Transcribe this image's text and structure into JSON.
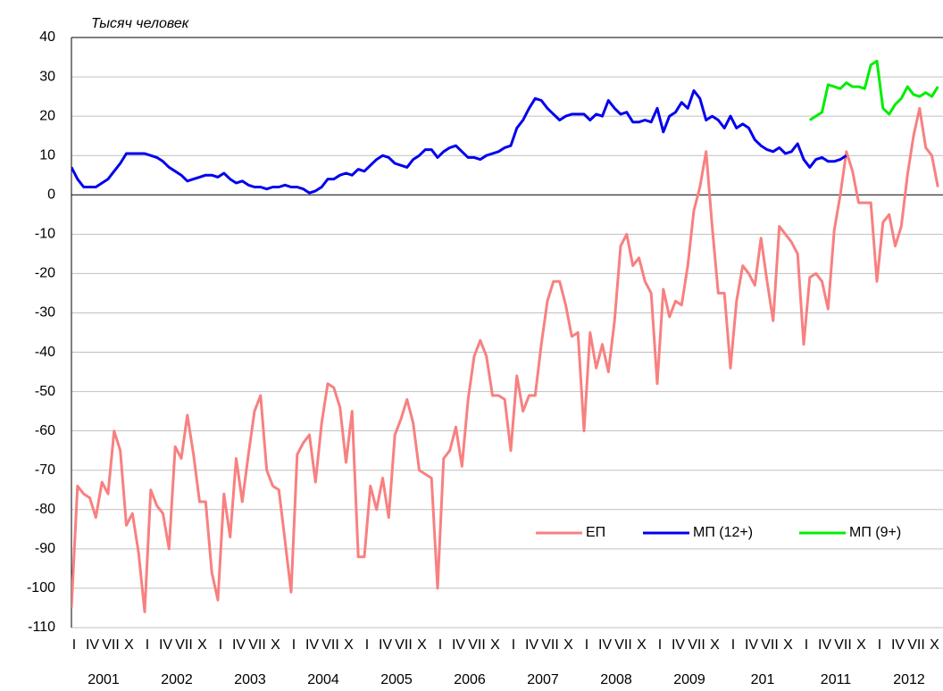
{
  "chart_data": {
    "type": "line",
    "unit_label": "Тысяч человек",
    "categories": [
      "I",
      null,
      null,
      "IV",
      null,
      null,
      "VII",
      null,
      null,
      "X",
      null,
      null,
      "I",
      null,
      null,
      "IV",
      null,
      null,
      "VII",
      null,
      null,
      "X",
      null,
      null,
      "I",
      null,
      null,
      "IV",
      null,
      null,
      "VII",
      null,
      null,
      "X",
      null,
      null,
      "I",
      null,
      null,
      "IV",
      null,
      null,
      "VII",
      null,
      null,
      "X",
      null,
      null,
      "I",
      null,
      null,
      "IV",
      null,
      null,
      "VII",
      null,
      null,
      "X",
      null,
      null,
      "I",
      null,
      null,
      "IV",
      null,
      null,
      "VII",
      null,
      null,
      "X",
      null,
      null,
      "I",
      null,
      null,
      "IV",
      null,
      null,
      "VII",
      null,
      null,
      "X",
      null,
      null,
      "I",
      null,
      null,
      "IV",
      null,
      null,
      "VII",
      null,
      null,
      "X",
      null,
      null,
      "I",
      null,
      null,
      "IV",
      null,
      null,
      "VII",
      null,
      null,
      "X",
      null,
      null,
      "I",
      null,
      null,
      "IV",
      null,
      null,
      "VII",
      null,
      null,
      "X",
      null,
      null,
      "I",
      null,
      null,
      "IV",
      null,
      null,
      "VII",
      null,
      null,
      "X",
      null,
      null,
      "I",
      null,
      null,
      "IV",
      null,
      null,
      "VII",
      null,
      null,
      "X",
      null,
      null
    ],
    "years": [
      "2001",
      "2002",
      "2003",
      "2004",
      "2005",
      "2006",
      "2007",
      "2008",
      "2009",
      "201",
      "2011",
      "2012"
    ],
    "series": [
      {
        "name": "ЕП",
        "color": "#f88080",
        "values": [
          -105,
          -74,
          -76,
          -77,
          -82,
          -73,
          -76,
          -60,
          -65,
          -84,
          -81,
          -91,
          -106,
          -75,
          -79,
          -81,
          -90,
          -64,
          -67,
          -56,
          -66,
          -78,
          -78,
          -96,
          -103,
          -76,
          -87,
          -67,
          -78,
          -66,
          -55,
          -51,
          -70,
          -74,
          -75,
          -88,
          -101,
          -66,
          -63,
          -61,
          -73,
          -58,
          -48,
          -49,
          -54,
          -68,
          -55,
          -92,
          -92,
          -74,
          -80,
          -72,
          -82,
          -61,
          -57,
          -52,
          -58,
          -70,
          -71,
          -72,
          -100,
          -67,
          -65,
          -59,
          -69,
          -52,
          -41,
          -37,
          -41,
          -51,
          -51,
          -52,
          -65,
          -46,
          -55,
          -51,
          -51,
          -38,
          -27,
          -22,
          -22,
          -28,
          -36,
          -35,
          -60,
          -35,
          -44,
          -38,
          -45,
          -32,
          -13,
          -10,
          -18,
          -16,
          -22,
          -25,
          -48,
          -24,
          -31,
          -27,
          -28,
          -18,
          -4,
          2,
          11,
          -8,
          -25,
          -25,
          -44,
          -27,
          -18,
          -20,
          -23,
          -11,
          -22,
          -32,
          -8,
          -10,
          -12,
          -15,
          -38,
          -21,
          -20,
          -22,
          -29,
          -9,
          0,
          11,
          6,
          -2,
          -2,
          -2,
          -22,
          -7,
          -5,
          -13,
          -8,
          5,
          15,
          22,
          12,
          10,
          2,
          null
        ]
      },
      {
        "name": "МП (12+)",
        "color": "#0000ee",
        "values": [
          7,
          4,
          2,
          2,
          2,
          3,
          4,
          6,
          8,
          10.5,
          10.5,
          10.5,
          10.5,
          10,
          9.5,
          8.5,
          7,
          6,
          5,
          3.5,
          4,
          4.5,
          5,
          5,
          4.5,
          5.5,
          4,
          3,
          3.5,
          2.5,
          2,
          2,
          1.5,
          2,
          2,
          2.5,
          2,
          2,
          1.5,
          0.5,
          1,
          2,
          4,
          4,
          5,
          5.5,
          5,
          6.5,
          6,
          7.5,
          9,
          10,
          9.5,
          8,
          7.5,
          7,
          9,
          10,
          11.5,
          11.5,
          9.5,
          11,
          12,
          12.5,
          11,
          9.5,
          9.5,
          9,
          10,
          10.5,
          11,
          12,
          12.5,
          17,
          19,
          22,
          24.5,
          24,
          22,
          20.5,
          19,
          20,
          20.5,
          20.5,
          20.5,
          19,
          20.5,
          20,
          24,
          22,
          20.5,
          21,
          18.5,
          18.5,
          19,
          18.5,
          22,
          16,
          20,
          21,
          23.5,
          22,
          26.5,
          24.5,
          19,
          20,
          19,
          17,
          20,
          17,
          18,
          17,
          14,
          12.5,
          11.5,
          11,
          12,
          10.5,
          11,
          13,
          9,
          7,
          9,
          9.5,
          8.5,
          8.5,
          9,
          10,
          null,
          null,
          null,
          null,
          null,
          null,
          null,
          null,
          null,
          null,
          null,
          null,
          null,
          null,
          null,
          null
        ]
      },
      {
        "name": "МП (9+)",
        "color": "#00ee00",
        "values": [
          null,
          null,
          null,
          null,
          null,
          null,
          null,
          null,
          null,
          null,
          null,
          null,
          null,
          null,
          null,
          null,
          null,
          null,
          null,
          null,
          null,
          null,
          null,
          null,
          null,
          null,
          null,
          null,
          null,
          null,
          null,
          null,
          null,
          null,
          null,
          null,
          null,
          null,
          null,
          null,
          null,
          null,
          null,
          null,
          null,
          null,
          null,
          null,
          null,
          null,
          null,
          null,
          null,
          null,
          null,
          null,
          null,
          null,
          null,
          null,
          null,
          null,
          null,
          null,
          null,
          null,
          null,
          null,
          null,
          null,
          null,
          null,
          null,
          null,
          null,
          null,
          null,
          null,
          null,
          null,
          null,
          null,
          null,
          null,
          null,
          null,
          null,
          null,
          null,
          null,
          null,
          null,
          null,
          null,
          null,
          null,
          null,
          null,
          null,
          null,
          null,
          null,
          null,
          null,
          null,
          null,
          null,
          null,
          null,
          null,
          null,
          null,
          null,
          null,
          null,
          null,
          null,
          null,
          null,
          null,
          null,
          19,
          20,
          21,
          28,
          27.5,
          27,
          28.5,
          27.5,
          27.5,
          27,
          33,
          34,
          22,
          20.5,
          23,
          24.5,
          27.5,
          25.5,
          25,
          26,
          25,
          27.5,
          null
        ]
      }
    ],
    "ylim": [
      -110,
      40
    ],
    "yticks": [
      -110,
      -100,
      -90,
      -80,
      -70,
      -60,
      -50,
      -40,
      -30,
      -20,
      -10,
      0,
      10,
      20,
      30,
      40
    ],
    "grid": true
  }
}
